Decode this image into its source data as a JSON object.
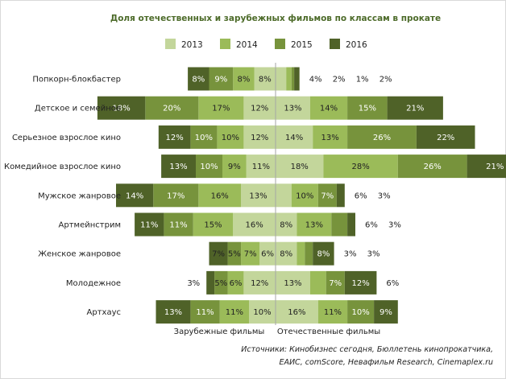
{
  "chart_data": {
    "type": "bar",
    "orientation": "horizontal-diverging-stacked",
    "title": "Доля отечественных и зарубежных фильмов по классам в прокате",
    "legend_position": "top",
    "series": [
      {
        "name": "2013",
        "color": "#c3d69b"
      },
      {
        "name": "2014",
        "color": "#9bbb59"
      },
      {
        "name": "2015",
        "color": "#77933c"
      },
      {
        "name": "2016",
        "color": "#4f6228"
      }
    ],
    "categories": [
      "Попкорн-блокбастер",
      "Детское и семейное",
      "Серьезное взрослое кино",
      "Комедийное взрослое кино",
      "Мужское жанровое",
      "Артмейнстрим",
      "Женское жанровое",
      "Молодежное",
      "Артхаус"
    ],
    "foreign": {
      "label": "Зарубежные фильмы",
      "values": [
        [
          "8%",
          "8%",
          "9%",
          "8%"
        ],
        [
          "12%",
          "17%",
          "20%",
          "18%"
        ],
        [
          "12%",
          "10%",
          "10%",
          "12%"
        ],
        [
          "11%",
          "9%",
          "10%",
          "13%"
        ],
        [
          "13%",
          "16%",
          "17%",
          "14%"
        ],
        [
          "16%",
          "15%",
          "11%",
          "11%"
        ],
        [
          "6%",
          "7%",
          "5%",
          "7%"
        ],
        [
          "12%",
          "6%",
          "5%",
          "3%"
        ],
        [
          "10%",
          "11%",
          "11%",
          "13%"
        ]
      ]
    },
    "domestic": {
      "label": "Отечественные фильмы",
      "values": [
        [
          "4%",
          "2%",
          "1%",
          "2%"
        ],
        [
          "13%",
          "14%",
          "15%",
          "21%"
        ],
        [
          "14%",
          "13%",
          "26%",
          "22%"
        ],
        [
          "18%",
          "28%",
          "26%",
          "21%"
        ],
        [
          "6%",
          "10%",
          "7%",
          "3%"
        ],
        [
          "8%",
          "13%",
          "6%",
          "3%"
        ],
        [
          "8%",
          "3%",
          "3%",
          "8%"
        ],
        [
          "13%",
          "6%",
          "7%",
          "12%"
        ],
        [
          "16%",
          "11%",
          "10%",
          "9%"
        ]
      ]
    },
    "source_lines": [
      "Источники: Кинобизнес сегодня, Бюллетень кинопрокатчика,",
      "ЕАИС, comScore, Невафильм Research, Cinemaplex.ru"
    ]
  }
}
